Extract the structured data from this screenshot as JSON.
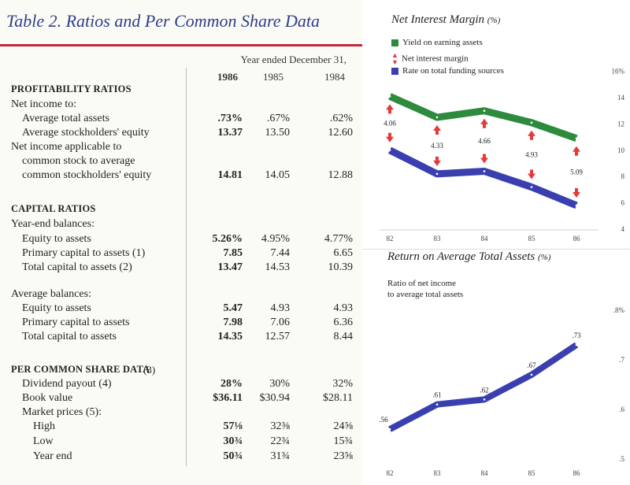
{
  "table": {
    "title": "Table 2. Ratios and Per Common Share Data",
    "year_header": "Year ended December 31,",
    "years": [
      "1986",
      "1985",
      "1984"
    ],
    "rows": [
      {
        "kind": "section",
        "label": "PROFITABILITY RATIOS"
      },
      {
        "kind": "label",
        "label": "Net income to:"
      },
      {
        "kind": "data",
        "indent": 1,
        "label": "Average total assets",
        "v86": ".73%",
        "v85": ".67%",
        "v84": ".62%"
      },
      {
        "kind": "data",
        "indent": 1,
        "label": "Average stockholders' equity",
        "v86": "13.37",
        "v85": "13.50",
        "v84": "12.60"
      },
      {
        "kind": "label",
        "label": "Net income applicable to"
      },
      {
        "kind": "label",
        "indent": 1,
        "label": "common stock to average"
      },
      {
        "kind": "data",
        "indent": 1,
        "label": "common stockholders' equity",
        "v86": "14.81",
        "v85": "14.05",
        "v84": "12.88"
      },
      {
        "kind": "section",
        "label": "CAPITAL RATIOS"
      },
      {
        "kind": "label",
        "label": "Year-end balances:"
      },
      {
        "kind": "data",
        "indent": 1,
        "label": "Equity to assets",
        "v86": "5.26%",
        "v85": "4.95%",
        "v84": "4.77%"
      },
      {
        "kind": "data",
        "indent": 1,
        "label": "Primary capital to assets (1)",
        "v86": "7.85",
        "v85": "7.44",
        "v84": "6.65"
      },
      {
        "kind": "data",
        "indent": 1,
        "label": "Total capital to assets (2)",
        "v86": "13.47",
        "v85": "14.53",
        "v84": "10.39"
      },
      {
        "kind": "label",
        "label": "Average balances:"
      },
      {
        "kind": "data",
        "indent": 1,
        "label": "Equity to assets",
        "v86": "5.47",
        "v85": "4.93",
        "v84": "4.93"
      },
      {
        "kind": "data",
        "indent": 1,
        "label": "Primary capital to assets",
        "v86": "7.98",
        "v85": "7.06",
        "v84": "6.36"
      },
      {
        "kind": "data",
        "indent": 1,
        "label": "Total capital to assets",
        "v86": "14.35",
        "v85": "12.57",
        "v84": "8.44"
      },
      {
        "kind": "section",
        "label": "PER COMMON SHARE DATA",
        "sub": "(3)"
      },
      {
        "kind": "data",
        "indent": 1,
        "label": "Dividend payout (4)",
        "v86": "28%",
        "v85": "30%",
        "v84": "32%"
      },
      {
        "kind": "data",
        "indent": 1,
        "label": "Book value",
        "v86": "$36.11",
        "v85": "$30.94",
        "v84": "$28.11"
      },
      {
        "kind": "label",
        "indent": 1,
        "label": "Market prices (5):"
      },
      {
        "kind": "data",
        "indent": 2,
        "label": "High",
        "v86": "57⅛",
        "v85": "32⅜",
        "v84": "24⅝"
      },
      {
        "kind": "data",
        "indent": 2,
        "label": "Low",
        "v86": "30¾",
        "v85": "22¾",
        "v84": "15¾"
      },
      {
        "kind": "data",
        "indent": 2,
        "label": "Year end",
        "v86": "50¾",
        "v85": "31¾",
        "v84": "23⅝"
      }
    ]
  },
  "nim_chart": {
    "title": "Net Interest Margin",
    "unit": "(%)",
    "legend": [
      {
        "label": "Yield on earning assets",
        "color": "#2e8b3e",
        "kind": "swatch"
      },
      {
        "label": "Net interest margin",
        "color": "#e23b3b",
        "kind": "arrow"
      },
      {
        "label": "Rate on total funding sources",
        "color": "#3a3fb0",
        "kind": "swatch"
      }
    ]
  },
  "roa_chart": {
    "title": "Return on Average Total Assets",
    "unit": "(%)",
    "sublabel_line1": "Ratio of net income",
    "sublabel_line2": "to average total assets"
  },
  "chart_data": [
    {
      "type": "line",
      "title": "Net Interest Margin (%)",
      "x": [
        "82",
        "83",
        "84",
        "85",
        "86"
      ],
      "y_ticks": [
        "4",
        "6",
        "8",
        "10",
        "12",
        "14",
        "16%"
      ],
      "ylim": [
        4,
        16
      ],
      "series": [
        {
          "name": "Yield on earning assets",
          "color": "#2e8b3e",
          "values": [
            14.1,
            12.5,
            13.0,
            12.1,
            10.9
          ]
        },
        {
          "name": "Rate on total funding sources",
          "color": "#3a3fb0",
          "values": [
            10.0,
            8.2,
            8.4,
            7.2,
            5.8
          ]
        },
        {
          "name": "Net interest margin",
          "color": "#e23b3b",
          "values": [
            4.06,
            4.33,
            4.66,
            4.93,
            5.09
          ],
          "labels": [
            "4.06",
            "4.33",
            "4.66",
            "4.93",
            "5.09"
          ]
        }
      ],
      "legend_position": "top-left"
    },
    {
      "type": "line",
      "title": "Return on Average Total Assets (%)",
      "x": [
        "82",
        "83",
        "84",
        "85",
        "86"
      ],
      "y_ticks": [
        ".5",
        ".6",
        ".7",
        ".8%"
      ],
      "ylim": [
        0.5,
        0.8
      ],
      "series": [
        {
          "name": "Ratio of net income to average total assets",
          "color": "#3a3fb0",
          "values": [
            0.56,
            0.61,
            0.62,
            0.67,
            0.73
          ],
          "labels": [
            ".56",
            ".61",
            ".62",
            ".67",
            ".73"
          ]
        }
      ]
    }
  ]
}
